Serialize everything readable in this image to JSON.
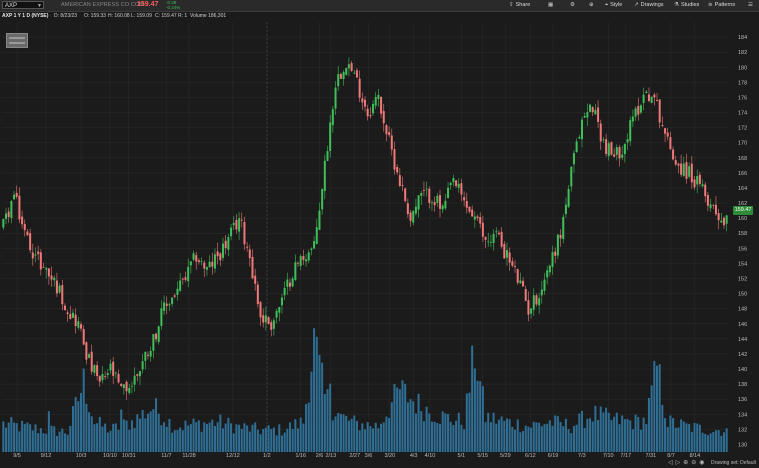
{
  "toolbar": {
    "symbol": "AXP",
    "company": "AMERICAN EXPRESS CO COM",
    "last_price": "159.47",
    "change": "-0.39",
    "change_pct": "-0.24%",
    "buttons": [
      {
        "icon": "share-icon",
        "label": "Share"
      },
      {
        "icon": "grid-icon",
        "label": ""
      },
      {
        "icon": "gear-icon",
        "label": ""
      },
      {
        "icon": "cursor-icon",
        "label": ""
      },
      {
        "icon": "style-icon",
        "label": "Style"
      },
      {
        "icon": "drawings-icon",
        "label": "Drawings"
      },
      {
        "icon": "studies-icon",
        "label": "Studies"
      },
      {
        "icon": "patterns-icon",
        "label": "Patterns"
      },
      {
        "icon": "menu-icon",
        "label": ""
      }
    ]
  },
  "infobar": {
    "title": "AXP 1 Y 1 D (NYSE)",
    "date": "D: 8/23/23",
    "open": "O: 159.33",
    "high": "H: 160.08",
    "low": "L: 159.09",
    "close": "C: 159.47",
    "r": "R: 1",
    "volume": "Volume  186,301"
  },
  "status": {
    "drawing_set": "Drawing set: Default"
  },
  "chart_data": {
    "type": "candlestick",
    "ylim": [
      129,
      186
    ],
    "y_ticks": [
      130,
      132,
      134,
      136,
      138,
      140,
      142,
      144,
      146,
      148,
      150,
      152,
      154,
      156,
      158,
      160,
      162,
      164,
      166,
      168,
      170,
      172,
      174,
      176,
      178,
      180,
      182,
      184
    ],
    "x_labels": [
      "9/5",
      "9/12",
      "10/3",
      "10/10",
      "10/31",
      "11/7",
      "11/28",
      "12/12",
      "1/2",
      "1/16",
      "2/6",
      "2/13",
      "2/27",
      "3/6",
      "3/20",
      "4/3",
      "4/10",
      "5/1",
      "5/15",
      "5/29",
      "6/12",
      "6/19",
      "7/3",
      "7/10",
      "7/17",
      "7/31",
      "8/7",
      "8/14"
    ],
    "current_price_label": "159.47",
    "colors": {
      "up": "#3fbf5a",
      "down": "#f07878",
      "volume": "#2f6f95",
      "grid": "#2c2c2c"
    },
    "close_path": [
      [
        0,
        159
      ],
      [
        4,
        163
      ],
      [
        8,
        158
      ],
      [
        12,
        155
      ],
      [
        16,
        153
      ],
      [
        20,
        151
      ],
      [
        24,
        148
      ],
      [
        28,
        146
      ],
      [
        32,
        141
      ],
      [
        36,
        138
      ],
      [
        40,
        140
      ],
      [
        44,
        137
      ],
      [
        48,
        138
      ],
      [
        52,
        141
      ],
      [
        56,
        144
      ],
      [
        60,
        148
      ],
      [
        64,
        150
      ],
      [
        68,
        152
      ],
      [
        72,
        155
      ],
      [
        76,
        153
      ],
      [
        80,
        155
      ],
      [
        84,
        157
      ],
      [
        88,
        160
      ],
      [
        92,
        155
      ],
      [
        96,
        147
      ],
      [
        100,
        146
      ],
      [
        104,
        149
      ],
      [
        108,
        153
      ],
      [
        112,
        155
      ],
      [
        116,
        156
      ],
      [
        120,
        167
      ],
      [
        124,
        178
      ],
      [
        128,
        181
      ],
      [
        132,
        178
      ],
      [
        136,
        174
      ],
      [
        140,
        176
      ],
      [
        144,
        170
      ],
      [
        148,
        165
      ],
      [
        152,
        160
      ],
      [
        156,
        163
      ],
      [
        160,
        163
      ],
      [
        164,
        161
      ],
      [
        168,
        165
      ],
      [
        172,
        162
      ],
      [
        176,
        160
      ],
      [
        180,
        157
      ],
      [
        184,
        158
      ],
      [
        188,
        155
      ],
      [
        192,
        152
      ],
      [
        196,
        148
      ],
      [
        200,
        150
      ],
      [
        204,
        154
      ],
      [
        208,
        158
      ],
      [
        212,
        166
      ],
      [
        216,
        173
      ],
      [
        220,
        175
      ],
      [
        224,
        170
      ],
      [
        228,
        168
      ],
      [
        232,
        170
      ],
      [
        236,
        174
      ],
      [
        240,
        177
      ],
      [
        244,
        175
      ],
      [
        248,
        170
      ],
      [
        252,
        167
      ],
      [
        256,
        166
      ],
      [
        260,
        164
      ],
      [
        264,
        162
      ],
      [
        268,
        160
      ],
      [
        270,
        159.5
      ]
    ],
    "volume_path": [
      [
        0,
        28
      ],
      [
        8,
        25
      ],
      [
        16,
        22
      ],
      [
        24,
        20
      ],
      [
        30,
        70
      ],
      [
        34,
        30
      ],
      [
        40,
        22
      ],
      [
        48,
        30
      ],
      [
        56,
        45
      ],
      [
        64,
        25
      ],
      [
        72,
        28
      ],
      [
        80,
        30
      ],
      [
        88,
        25
      ],
      [
        96,
        22
      ],
      [
        104,
        22
      ],
      [
        112,
        30
      ],
      [
        116,
        110
      ],
      [
        120,
        55
      ],
      [
        126,
        35
      ],
      [
        132,
        28
      ],
      [
        140,
        26
      ],
      [
        148,
        62
      ],
      [
        156,
        45
      ],
      [
        164,
        35
      ],
      [
        172,
        30
      ],
      [
        176,
        100
      ],
      [
        180,
        35
      ],
      [
        188,
        30
      ],
      [
        196,
        26
      ],
      [
        204,
        30
      ],
      [
        212,
        26
      ],
      [
        220,
        38
      ],
      [
        228,
        32
      ],
      [
        236,
        30
      ],
      [
        240,
        32
      ],
      [
        244,
        85
      ],
      [
        248,
        30
      ],
      [
        256,
        25
      ],
      [
        264,
        22
      ],
      [
        270,
        22
      ]
    ]
  }
}
